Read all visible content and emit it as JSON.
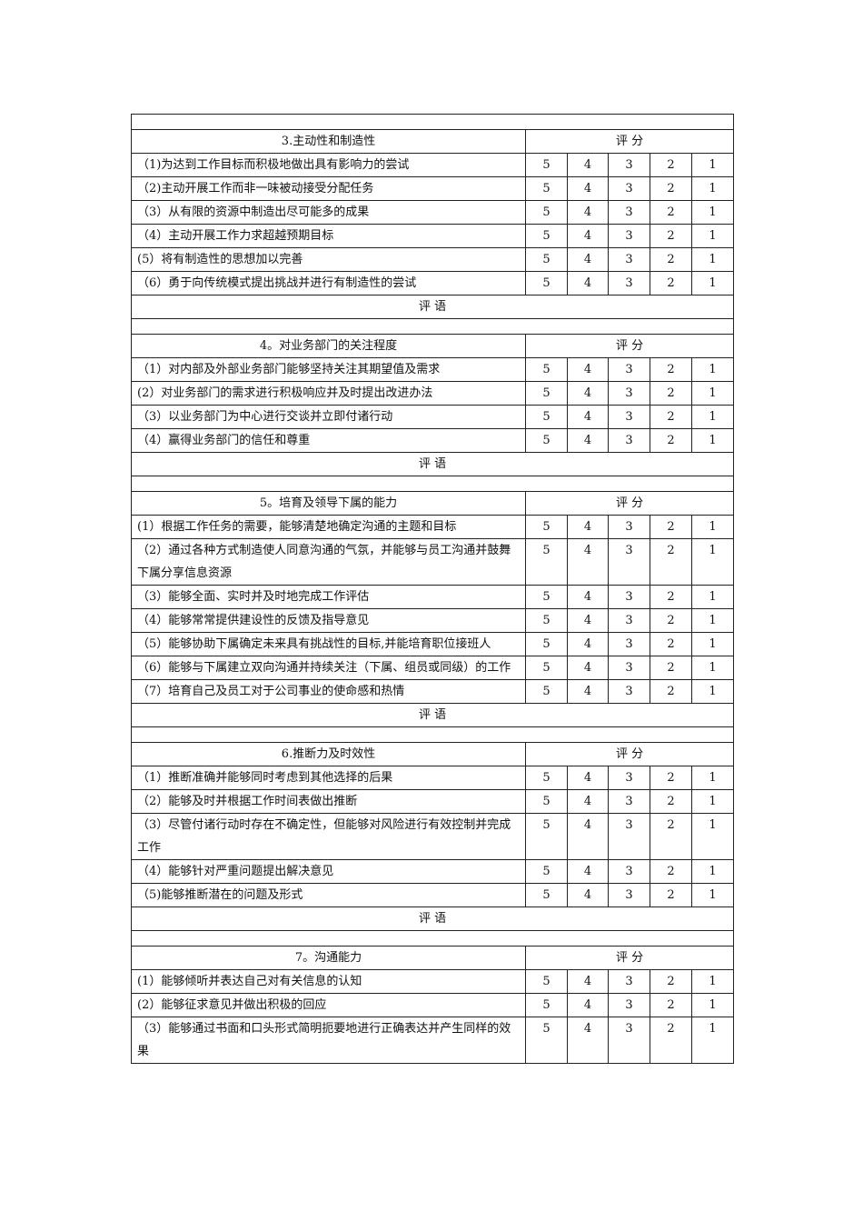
{
  "sections": [
    {
      "title": "3.主动性和制造性",
      "score_header": "评 分",
      "comment_label": "评 语",
      "items": [
        {
          "text": "（1)为达到工作目标而积极地做出具有影响力的尝试",
          "scores": [
            "5",
            "4",
            "3",
            "2",
            "1"
          ]
        },
        {
          "text": "（2)主动开展工作而非一味被动接受分配任务",
          "scores": [
            "5",
            "4",
            "3",
            "2",
            "1"
          ]
        },
        {
          "text": "（3）从有限的资源中制造出尽可能多的成果",
          "scores": [
            "5",
            "4",
            "3",
            "2",
            "1"
          ]
        },
        {
          "text": "（4）主动开展工作力求超越预期目标",
          "scores": [
            "5",
            "4",
            "3",
            "2",
            "1"
          ]
        },
        {
          "text": "(5）将有制造性的思想加以完善",
          "scores": [
            "5",
            "4",
            "3",
            "2",
            "1"
          ]
        },
        {
          "text": "（6）勇于向传统模式提出挑战并进行有制造性的尝试",
          "scores": [
            "5",
            "4",
            "3",
            "2",
            "1"
          ]
        }
      ]
    },
    {
      "title": "4。对业务部门的关注程度",
      "score_header": "评 分",
      "comment_label": "评 语",
      "items": [
        {
          "text": "（1）对内部及外部业务部门能够坚持关注其期望值及需求",
          "scores": [
            "5",
            "4",
            "3",
            "2",
            "1"
          ]
        },
        {
          "text": "(2）对业务部门的需求进行积极响应并及时提出改进办法",
          "scores": [
            "5",
            "4",
            "3",
            "2",
            "1"
          ]
        },
        {
          "text": "（3）以业务部门为中心进行交谈并立即付诸行动",
          "scores": [
            "5",
            "4",
            "3",
            "2",
            "1"
          ]
        },
        {
          "text": "（4）赢得业务部门的信任和尊重",
          "scores": [
            "5",
            "4",
            "3",
            "2",
            "1"
          ]
        }
      ]
    },
    {
      "title": "5。培育及领导下属的能力",
      "score_header": "评 分",
      "comment_label": "评 语",
      "items": [
        {
          "text": "(1）根据工作任务的需要，能够清楚地确定沟通的主题和目标",
          "scores": [
            "5",
            "4",
            "3",
            "2",
            "1"
          ]
        },
        {
          "text": "（2）通过各种方式制造使人同意沟通的气氛，并能够与员工沟通并鼓舞下属分享信息资源",
          "scores": [
            "5",
            "4",
            "3",
            "2",
            "1"
          ]
        },
        {
          "text": "（3）能够全面、实时并及时地完成工作评估",
          "scores": [
            "5",
            "4",
            "3",
            "2",
            "1"
          ]
        },
        {
          "text": "（4）能够常常提供建设性的反馈及指导意见",
          "scores": [
            "5",
            "4",
            "3",
            "2",
            "1"
          ]
        },
        {
          "text": "（5）能够协助下属确定未来具有挑战性的目标,并能培育职位接班人",
          "scores": [
            "5",
            "4",
            "3",
            "2",
            "1"
          ]
        },
        {
          "text": "（6）能够与下属建立双向沟通并持续关注（下属、组员或同级）的工作",
          "scores": [
            "5",
            "4",
            "3",
            "2",
            "1"
          ]
        },
        {
          "text": "（7）培育自己及员工对于公司事业的使命感和热情",
          "scores": [
            "5",
            "4",
            "3",
            "2",
            "1"
          ]
        }
      ]
    },
    {
      "title": "6.推断力及时效性",
      "score_header": "评 分",
      "comment_label": "评 语",
      "items": [
        {
          "text": "（1）推断准确并能够同时考虑到其他选择的后果",
          "scores": [
            "5",
            "4",
            "3",
            "2",
            "1"
          ]
        },
        {
          "text": "（2）能够及时并根据工作时间表做出推断",
          "scores": [
            "5",
            "4",
            "3",
            "2",
            "1"
          ]
        },
        {
          "text": "（3）尽管付诸行动时存在不确定性，但能够对风险进行有效控制并完成工作",
          "scores": [
            "5",
            "4",
            "3",
            "2",
            "1"
          ]
        },
        {
          "text": "（4）能够针对严重问题提出解决意见",
          "scores": [
            "5",
            "4",
            "3",
            "2",
            "1"
          ]
        },
        {
          "text": "（5)能够推断潜在的问题及形式",
          "scores": [
            "5",
            "4",
            "3",
            "2",
            "1"
          ]
        }
      ]
    },
    {
      "title": "7。沟通能力",
      "score_header": "评 分",
      "items": [
        {
          "text": "(1）能够倾听并表达自己对有关信息的认知",
          "scores": [
            "5",
            "4",
            "3",
            "2",
            "1"
          ]
        },
        {
          "text": "(2）能够征求意见并做出积极的回应",
          "scores": [
            "5",
            "4",
            "3",
            "2",
            "1"
          ]
        },
        {
          "text": "（3）能够通过书面和口头形式简明扼要地进行正确表达并产生同样的效果",
          "scores": [
            "5",
            "4",
            "3",
            "2",
            "1"
          ]
        }
      ]
    }
  ]
}
